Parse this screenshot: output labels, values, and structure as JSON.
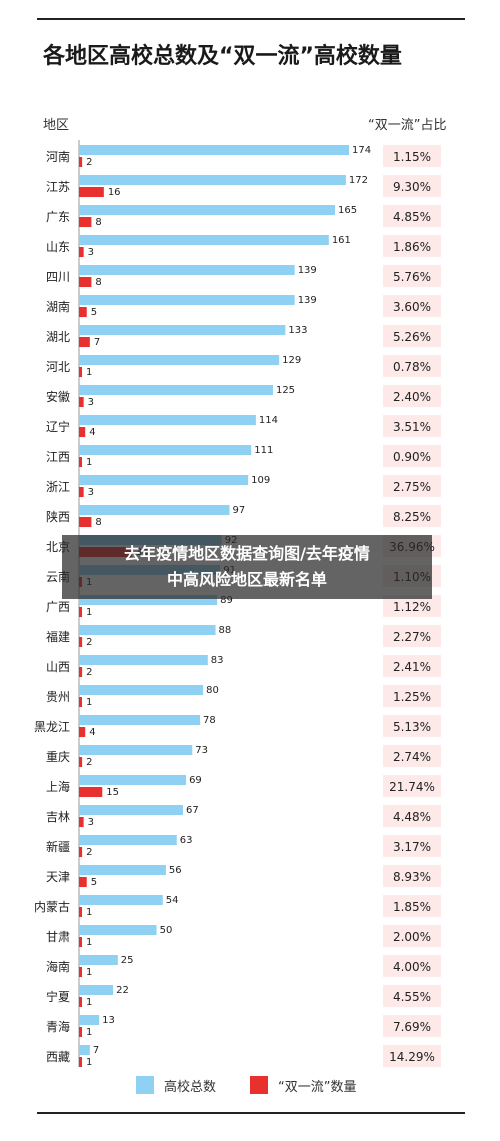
{
  "header": {
    "title": "各地区高校总数及“双一流”高校数量",
    "col_region": "地区",
    "col_share": "“双一流”占比"
  },
  "overlay": {
    "line1": "去年疫情地区数据查询图/去年疫情",
    "line2": "中高风险地区最新名单"
  },
  "legend": {
    "total_label": "高校总数",
    "dfc_label": "“双一流”数量"
  },
  "colors": {
    "total": "#8fd1f2",
    "dfc": "#e8312f",
    "share_bg": "#fce9e8"
  },
  "chart_data": {
    "type": "bar",
    "title": "各地区高校总数及“双一流”高校数量",
    "xlabel": "",
    "ylabel": "地区",
    "orientation": "horizontal",
    "categories": [
      "河南",
      "江苏",
      "广东",
      "山东",
      "四川",
      "湖南",
      "湖北",
      "河北",
      "安徽",
      "辽宁",
      "江西",
      "浙江",
      "陕西",
      "北京",
      "云南",
      "广西",
      "福建",
      "山西",
      "贵州",
      "黑龙江",
      "重庆",
      "上海",
      "吉林",
      "新疆",
      "天津",
      "内蒙古",
      "甘肃",
      "海南",
      "宁夏",
      "青海",
      "西藏"
    ],
    "series": [
      {
        "name": "高校总数",
        "values": [
          174,
          172,
          165,
          161,
          139,
          139,
          133,
          129,
          125,
          114,
          111,
          109,
          97,
          92,
          91,
          89,
          88,
          83,
          80,
          78,
          73,
          69,
          67,
          63,
          56,
          54,
          50,
          25,
          22,
          13,
          7
        ]
      },
      {
        "name": "“双一流”数量",
        "values": [
          2,
          16,
          8,
          3,
          8,
          5,
          7,
          1,
          3,
          4,
          1,
          3,
          8,
          34,
          1,
          1,
          2,
          2,
          1,
          4,
          2,
          15,
          3,
          2,
          5,
          1,
          1,
          1,
          1,
          1,
          1
        ]
      }
    ],
    "share_labels": [
      "1.15%",
      "9.30%",
      "4.85%",
      "1.86%",
      "5.76%",
      "3.60%",
      "5.26%",
      "0.78%",
      "2.40%",
      "3.51%",
      "0.90%",
      "2.75%",
      "8.25%",
      "36.96%",
      "1.10%",
      "1.12%",
      "2.27%",
      "2.41%",
      "1.25%",
      "5.13%",
      "2.74%",
      "21.74%",
      "4.48%",
      "3.17%",
      "8.93%",
      "1.85%",
      "2.00%",
      "4.00%",
      "4.55%",
      "7.69%",
      "14.29%"
    ],
    "xlim": [
      0,
      180
    ],
    "grid": false,
    "legend_position": "bottom"
  }
}
